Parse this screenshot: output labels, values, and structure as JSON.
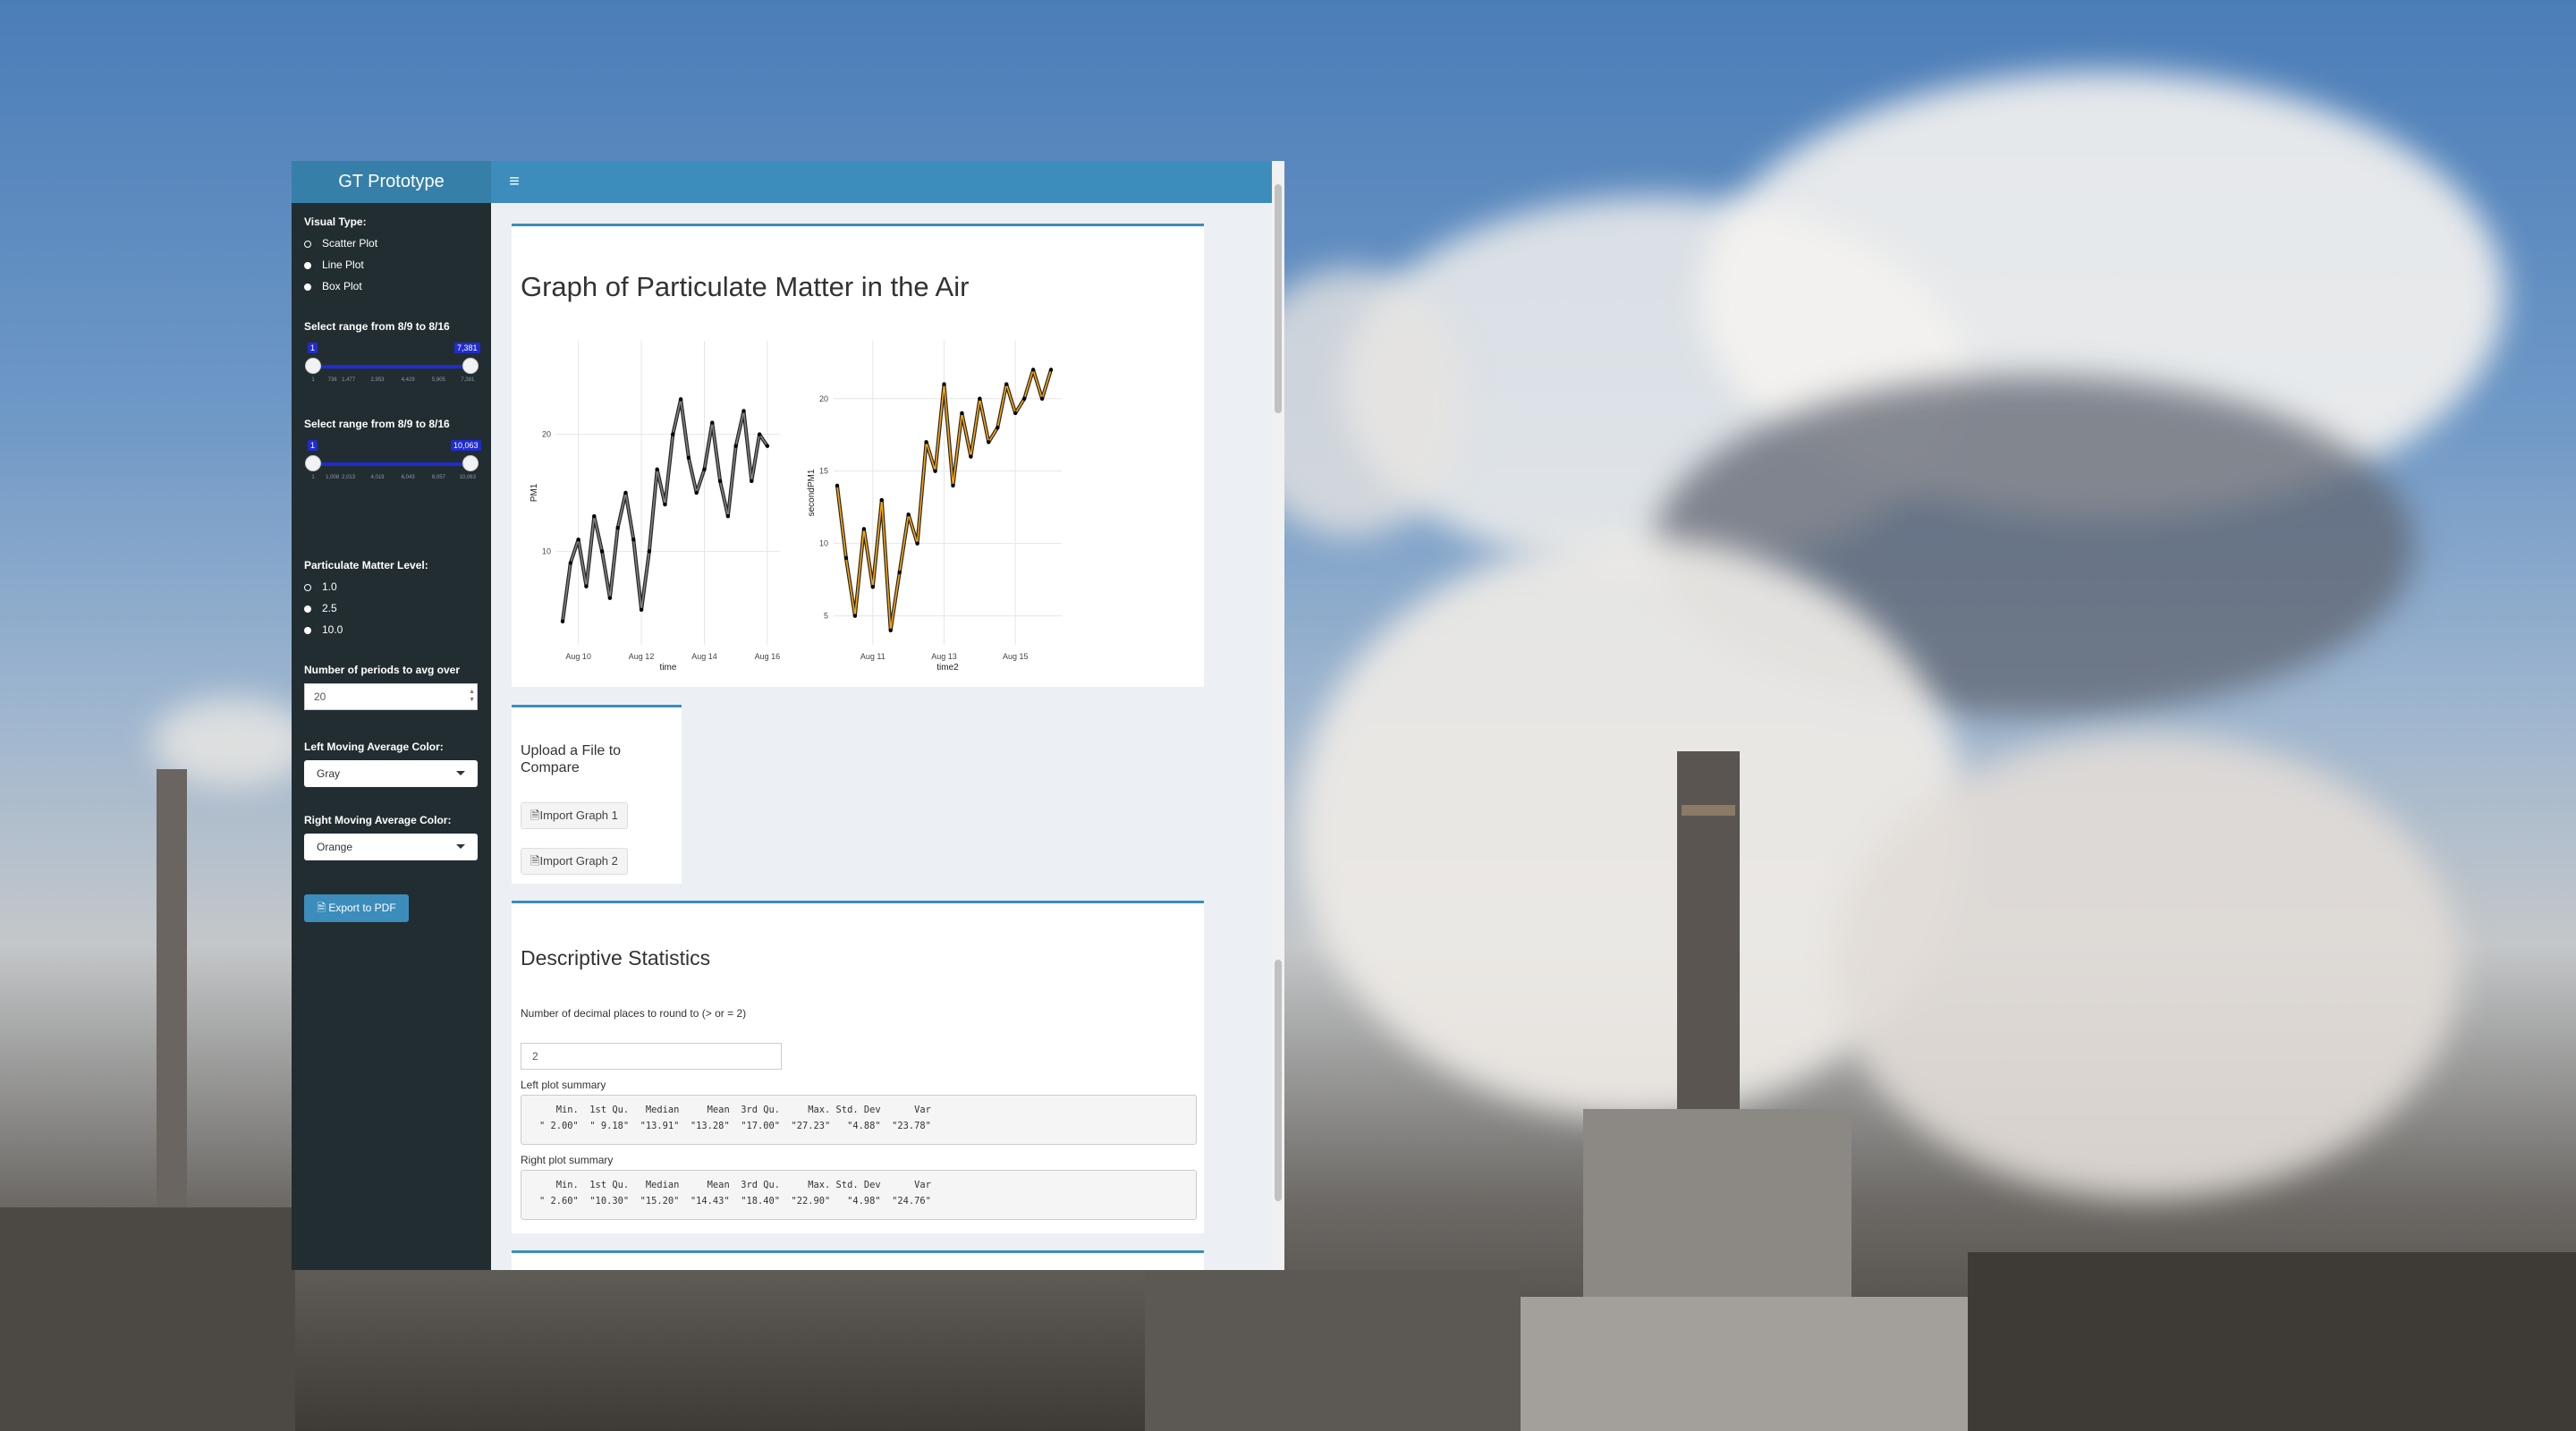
{
  "app": {
    "title": "GT Prototype",
    "menu_icon": "hamburger-icon",
    "accent_color": "#3c8dbc",
    "sidebar_color": "#222d32"
  },
  "sidebar": {
    "visual_type": {
      "label": "Visual Type:",
      "options": [
        "Scatter Plot",
        "Line Plot",
        "Box Plot"
      ],
      "selected": "Line Plot"
    },
    "range1": {
      "label": "Select range from 8/9 to 8/16",
      "min_value": "1",
      "max_value": "7,381",
      "ticks": [
        "1",
        "738",
        "1,477",
        "2,953",
        "4,429",
        "5,905",
        "7,381"
      ]
    },
    "range2": {
      "label": "Select range from 8/9 to 8/16",
      "min_value": "1",
      "max_value": "10,063",
      "ticks": [
        "1",
        "1,008",
        "2,013",
        "4,019",
        "6,043",
        "8,057",
        "10,063"
      ]
    },
    "pm_level": {
      "label": "Particulate Matter Level:",
      "options": [
        "1.0",
        "2.5",
        "10.0"
      ],
      "selected": "2.5"
    },
    "periods": {
      "label": "Number of periods to avg over",
      "value": "20"
    },
    "left_color": {
      "label": "Left Moving Average Color:",
      "value": "Gray"
    },
    "right_color": {
      "label": "Right Moving Average Color:",
      "value": "Orange"
    },
    "export": {
      "label": "Export to PDF",
      "icon": "file-pdf-icon"
    }
  },
  "graph_box": {
    "title": "Graph of Particulate Matter in the Air"
  },
  "upload_box": {
    "title_line1": "Upload a File to",
    "title_line2": "Compare",
    "button1": "Import Graph 1",
    "button2": "Import Graph 2",
    "icon": "file-icon"
  },
  "stats_box": {
    "title": "Descriptive Statistics",
    "decimal_label": "Number of decimal places to round to (> or = 2)",
    "decimal_value": "2",
    "left_label": "Left plot summary",
    "left_header": "   Min.  1st Qu.   Median     Mean  3rd Qu.     Max. Std. Dev      Var",
    "left_values": "\" 2.00\"  \" 9.18\"  \"13.91\"  \"13.28\"  \"17.00\"  \"27.23\"   \"4.88\"  \"23.78\"",
    "right_label": "Right plot summary",
    "right_header": "   Min.  1st Qu.   Median     Mean  3rd Qu.     Max. Std. Dev      Var",
    "right_values": "\" 2.60\"  \"10.30\"  \"15.20\"  \"14.43\"  \"18.40\"  \"22.90\"   \"4.98\"  \"24.76\""
  },
  "chart_data": [
    {
      "type": "scatter",
      "title": "",
      "xlabel": "time",
      "ylabel": "PM1",
      "x_ticks": [
        "Aug 10",
        "Aug 12",
        "Aug 14",
        "Aug 16"
      ],
      "y_ticks": [
        10,
        20
      ],
      "ylim": [
        2,
        28
      ],
      "moving_average_color": "#808080",
      "point_color": "#000000",
      "x": [
        "Aug 9 12:00",
        "Aug 9 18:00",
        "Aug 10 00:00",
        "Aug 10 06:00",
        "Aug 10 12:00",
        "Aug 10 18:00",
        "Aug 11 00:00",
        "Aug 11 06:00",
        "Aug 11 12:00",
        "Aug 11 18:00",
        "Aug 12 00:00",
        "Aug 12 06:00",
        "Aug 12 12:00",
        "Aug 12 18:00",
        "Aug 13 00:00",
        "Aug 13 06:00",
        "Aug 13 12:00",
        "Aug 13 18:00",
        "Aug 14 00:00",
        "Aug 14 06:00",
        "Aug 14 12:00",
        "Aug 14 18:00",
        "Aug 15 00:00",
        "Aug 15 06:00",
        "Aug 15 12:00",
        "Aug 15 18:00",
        "Aug 16 00:00"
      ],
      "y": [
        4,
        9,
        11,
        7,
        13,
        10,
        6,
        12,
        15,
        11,
        5,
        10,
        17,
        14,
        20,
        23,
        18,
        15,
        17,
        21,
        16,
        13,
        19,
        22,
        16,
        20,
        19
      ]
    },
    {
      "type": "line",
      "title": "",
      "xlabel": "time2",
      "ylabel": "secondPM1",
      "x_ticks": [
        "Aug 11",
        "Aug 13",
        "Aug 15"
      ],
      "y_ticks": [
        5,
        10,
        15,
        20
      ],
      "ylim": [
        3,
        24
      ],
      "moving_average_color": "#ffa500",
      "point_color": "#000000",
      "x": [
        "Aug 10 00:00",
        "Aug 10 06:00",
        "Aug 10 12:00",
        "Aug 10 18:00",
        "Aug 11 00:00",
        "Aug 11 06:00",
        "Aug 11 12:00",
        "Aug 11 18:00",
        "Aug 12 00:00",
        "Aug 12 06:00",
        "Aug 12 12:00",
        "Aug 12 18:00",
        "Aug 13 00:00",
        "Aug 13 06:00",
        "Aug 13 12:00",
        "Aug 13 18:00",
        "Aug 14 00:00",
        "Aug 14 06:00",
        "Aug 14 12:00",
        "Aug 14 18:00",
        "Aug 15 00:00",
        "Aug 15 06:00",
        "Aug 15 12:00",
        "Aug 15 18:00",
        "Aug 16 00:00"
      ],
      "y": [
        14,
        9,
        5,
        11,
        7,
        13,
        4,
        8,
        12,
        10,
        17,
        15,
        21,
        14,
        19,
        16,
        20,
        17,
        18,
        21,
        19,
        20,
        22,
        20,
        22
      ]
    }
  ]
}
